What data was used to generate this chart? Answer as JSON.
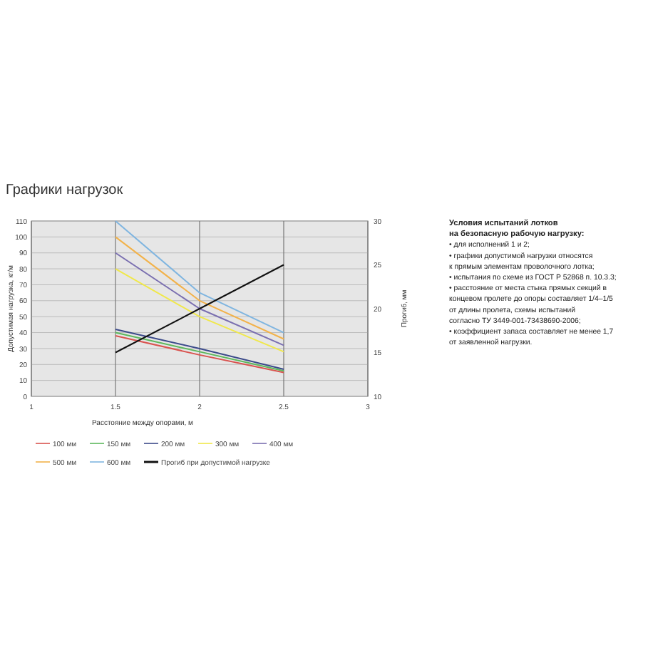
{
  "chart_data": {
    "type": "line",
    "title": "Графики нагрузок",
    "xlabel": "Расстояние между опорами, м",
    "ylabel": "Допустимая нагрузка, кг/м",
    "y2label": "Прогиб, мм",
    "x": [
      1.5,
      2,
      2.5
    ],
    "xlim": [
      1,
      3
    ],
    "xticks": [
      1,
      1.5,
      2,
      2.5,
      3
    ],
    "ylim": [
      0,
      110
    ],
    "yticks": [
      0,
      10,
      20,
      30,
      40,
      50,
      60,
      70,
      80,
      90,
      100,
      110
    ],
    "y2lim": [
      10,
      30
    ],
    "y2ticks": [
      10,
      15,
      20,
      25,
      30
    ],
    "grid": true,
    "legend": "bottom",
    "marker": "none",
    "line_style": "solid",
    "series": [
      {
        "name": "100 мм",
        "color": "#d9534f",
        "values": [
          38,
          26,
          15
        ]
      },
      {
        "name": "150 мм",
        "color": "#5cb85c",
        "values": [
          40,
          28,
          16
        ]
      },
      {
        "name": "200 мм",
        "color": "#3b4a8a",
        "values": [
          42,
          30,
          17
        ]
      },
      {
        "name": "300 мм",
        "color": "#f0e84a",
        "values": [
          80,
          50,
          28
        ]
      },
      {
        "name": "400 мм",
        "color": "#7a6fb0",
        "values": [
          90,
          55,
          32
        ]
      },
      {
        "name": "500 мм",
        "color": "#f2b24a",
        "values": [
          100,
          60,
          36
        ]
      },
      {
        "name": "600 мм",
        "color": "#7fb5e0",
        "values": [
          110,
          65,
          40
        ]
      },
      {
        "name": "Прогиб при допустимой нагрузке",
        "color": "#111111",
        "axis": "y2",
        "values": [
          15,
          20,
          25
        ]
      }
    ],
    "annotations": [
      "Условия испытаний лотков",
      "на безопасную рабочую нагрузку:",
      "• для исполнений 1 и 2;",
      "• графики допустимой нагрузки относятся",
      "к прямым элементам проволочного лотка;",
      "• испытания по схеме из ГОСТ Р 52868 п. 10.3.3;",
      "• расстояние от места стыка прямых секций в",
      "концевом пролете до опоры составляет 1/4–1/5",
      "от длины пролета, схемы испытаний",
      "согласно ТУ 3449-001-73438690-2006;",
      "• коэффициент запаса составляет не менее 1,7",
      "от заявленной нагрузки."
    ]
  }
}
